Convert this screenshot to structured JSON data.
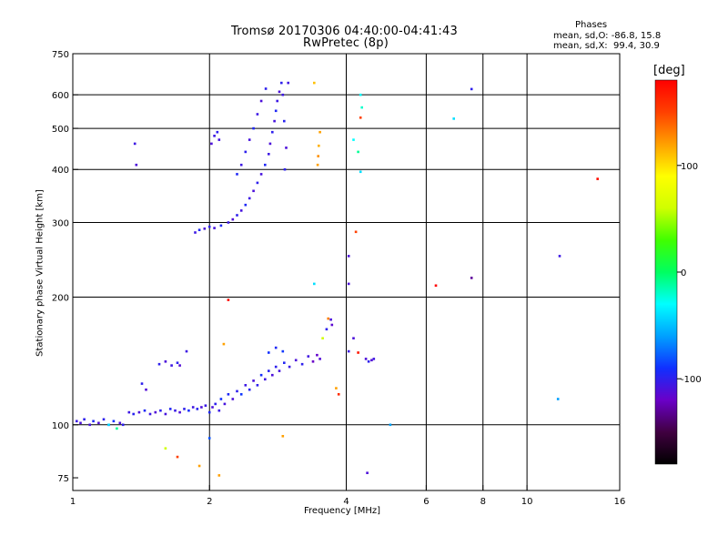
{
  "chart_data": {
    "type": "scatter",
    "title": "Tromsø 20170306 04:40:00-04:41:43",
    "subtitle": "RwPretec (8p)",
    "stats": {
      "heading": "Phases",
      "line1": "mean, sd,O: -86.8, 15.8",
      "line2": "mean, sd,X:  99.4, 30.9"
    },
    "xlabel": "Frequency [MHz]",
    "ylabel": "Stationary phase Virtual Height [km]",
    "x_scale": "log2",
    "y_scale": "log",
    "xlim": [
      1,
      16
    ],
    "ylim": [
      70,
      750
    ],
    "xticks": [
      {
        "value": 1,
        "label": "1"
      },
      {
        "value": 2,
        "label": "2"
      },
      {
        "value": 4,
        "label": "4"
      },
      {
        "value": 6,
        "label": "6"
      },
      {
        "value": 8,
        "label": "8"
      },
      {
        "value": 10,
        "label": "10"
      },
      {
        "value": 16,
        "label": "16"
      }
    ],
    "yticks": [
      {
        "value": 75,
        "label": "75"
      },
      {
        "value": 100,
        "label": "100"
      },
      {
        "value": 200,
        "label": "200"
      },
      {
        "value": 300,
        "label": "300"
      },
      {
        "value": 400,
        "label": "400"
      },
      {
        "value": 500,
        "label": "500"
      },
      {
        "value": 600,
        "label": "600"
      },
      {
        "value": 750,
        "label": "750"
      }
    ],
    "xgrid": [
      2,
      4,
      6,
      8,
      10
    ],
    "ygrid": [
      100,
      200,
      300,
      400,
      500,
      600
    ],
    "grid": true,
    "colorbar": {
      "label": "[deg]",
      "range": [
        -180,
        180
      ],
      "ticks": [
        {
          "value": 100,
          "label": "100"
        },
        {
          "value": 0,
          "label": "0"
        },
        {
          "value": -100,
          "label": "-100"
        }
      ],
      "stops": [
        "#000000",
        "#400040",
        "#6a00c8",
        "#1030ff",
        "#00a0ff",
        "#00ffff",
        "#00ff60",
        "#40ff00",
        "#d0ff00",
        "#ffff00",
        "#ffa000",
        "#ff4000",
        "#ff0000"
      ]
    },
    "series": [
      {
        "points": [
          [
            1.02,
            102,
            -105
          ],
          [
            1.04,
            101,
            -110
          ],
          [
            1.06,
            103,
            -100
          ],
          [
            1.09,
            100,
            -108
          ],
          [
            1.11,
            102,
            -95
          ],
          [
            1.14,
            101,
            -112
          ],
          [
            1.17,
            103,
            -100
          ],
          [
            1.2,
            100,
            -105
          ],
          [
            1.23,
            102,
            -90
          ],
          [
            1.27,
            101,
            -110
          ],
          [
            1.29,
            100,
            -100
          ],
          [
            1.33,
            107,
            -105
          ],
          [
            1.36,
            106,
            -98
          ],
          [
            1.4,
            107,
            -110
          ],
          [
            1.44,
            108,
            -95
          ],
          [
            1.48,
            106,
            -105
          ],
          [
            1.52,
            107,
            -112
          ],
          [
            1.56,
            108,
            -100
          ],
          [
            1.6,
            106,
            -108
          ],
          [
            1.64,
            109,
            -96
          ],
          [
            1.68,
            108,
            -104
          ],
          [
            1.72,
            107,
            -110
          ],
          [
            1.76,
            109,
            -100
          ],
          [
            1.8,
            108,
            -92
          ],
          [
            1.84,
            110,
            -106
          ],
          [
            1.88,
            109,
            -98
          ],
          [
            1.92,
            110,
            -110
          ],
          [
            1.96,
            111,
            -104
          ],
          [
            2.0,
            107,
            -95
          ],
          [
            2.03,
            110,
            -110
          ],
          [
            2.06,
            112,
            -100
          ],
          [
            2.1,
            108,
            -105
          ],
          [
            2.12,
            115,
            -90
          ],
          [
            2.16,
            112,
            -108
          ],
          [
            2.2,
            118,
            -95
          ],
          [
            2.25,
            115,
            -110
          ],
          [
            2.3,
            120,
            -100
          ],
          [
            2.35,
            118,
            -88
          ],
          [
            2.4,
            124,
            -105
          ],
          [
            2.45,
            121,
            -98
          ],
          [
            2.5,
            127,
            -110
          ],
          [
            2.55,
            124,
            -100
          ],
          [
            2.6,
            131,
            -92
          ],
          [
            2.65,
            128,
            -106
          ],
          [
            2.7,
            134,
            -98
          ],
          [
            2.75,
            131,
            -110
          ],
          [
            2.8,
            137,
            -100
          ],
          [
            2.85,
            134,
            -108
          ],
          [
            2.92,
            140,
            -96
          ],
          [
            3.0,
            137,
            -104
          ],
          [
            3.1,
            142,
            -110
          ],
          [
            3.2,
            139,
            -100
          ],
          [
            3.3,
            145,
            -106
          ],
          [
            3.38,
            141,
            -120
          ],
          [
            3.45,
            146,
            -118
          ],
          [
            3.5,
            143,
            -112
          ],
          [
            2.7,
            148,
            -90
          ],
          [
            2.8,
            152,
            -95
          ],
          [
            2.9,
            149,
            -88
          ],
          [
            1.55,
            139,
            -100
          ],
          [
            1.6,
            141,
            -110
          ],
          [
            1.65,
            138,
            -105
          ],
          [
            1.7,
            140,
            -100
          ],
          [
            1.72,
            138,
            -112
          ],
          [
            1.78,
            149,
            -105
          ],
          [
            1.42,
            125,
            -100
          ],
          [
            1.45,
            121,
            -112
          ],
          [
            3.7,
            177,
            -110
          ],
          [
            3.72,
            172,
            -115
          ],
          [
            3.62,
            168,
            -100
          ],
          [
            4.42,
            143,
            -110
          ],
          [
            4.48,
            141,
            -100
          ],
          [
            4.55,
            142,
            -112
          ],
          [
            4.6,
            143,
            -106
          ],
          [
            4.05,
            149,
            -105
          ],
          [
            1.86,
            284,
            -105
          ],
          [
            1.9,
            288,
            -95
          ],
          [
            1.95,
            290,
            -110
          ],
          [
            2.0,
            293,
            -100
          ],
          [
            2.05,
            291,
            -108
          ],
          [
            2.12,
            295,
            -95
          ],
          [
            2.2,
            300,
            -105
          ],
          [
            2.25,
            305,
            -112
          ],
          [
            2.3,
            312,
            -100
          ],
          [
            2.35,
            320,
            -108
          ],
          [
            2.4,
            330,
            -95
          ],
          [
            2.45,
            342,
            -105
          ],
          [
            2.5,
            356,
            -110
          ],
          [
            2.55,
            372,
            -100
          ],
          [
            2.6,
            390,
            -108
          ],
          [
            2.65,
            410,
            -95
          ],
          [
            2.7,
            435,
            -105
          ],
          [
            2.72,
            460,
            -110
          ],
          [
            2.75,
            490,
            -100
          ],
          [
            2.78,
            520,
            -108
          ],
          [
            2.8,
            550,
            -95
          ],
          [
            2.82,
            580,
            -105
          ],
          [
            2.85,
            610,
            -110
          ],
          [
            2.88,
            640,
            -100
          ],
          [
            2.3,
            390,
            -95
          ],
          [
            2.35,
            410,
            -105
          ],
          [
            2.4,
            440,
            -100
          ],
          [
            2.45,
            470,
            -108
          ],
          [
            2.5,
            500,
            -95
          ],
          [
            2.55,
            540,
            -105
          ],
          [
            2.6,
            580,
            -110
          ],
          [
            2.66,
            620,
            -100
          ],
          [
            2.9,
            600,
            -105
          ],
          [
            2.92,
            520,
            -98
          ],
          [
            2.95,
            450,
            -110
          ],
          [
            2.93,
            400,
            -100
          ],
          [
            2.98,
            640,
            -106
          ],
          [
            2.05,
            480,
            -105
          ],
          [
            2.08,
            490,
            -100
          ],
          [
            2.1,
            470,
            -108
          ],
          [
            2.02,
            460,
            -110
          ],
          [
            1.37,
            460,
            -105
          ],
          [
            1.38,
            410,
            -110
          ],
          [
            3.4,
            640,
            110
          ],
          [
            3.5,
            490,
            120
          ],
          [
            3.48,
            455,
            115
          ],
          [
            3.47,
            430,
            125
          ],
          [
            3.46,
            410,
            120
          ],
          [
            3.4,
            215,
            -40
          ],
          [
            3.65,
            178,
            130
          ],
          [
            3.55,
            160,
            60
          ],
          [
            4.3,
            600,
            -30
          ],
          [
            4.33,
            560,
            -20
          ],
          [
            4.3,
            530,
            150
          ],
          [
            4.15,
            470,
            -30
          ],
          [
            4.25,
            440,
            -10
          ],
          [
            4.3,
            395,
            -40
          ],
          [
            4.2,
            285,
            150
          ],
          [
            4.05,
            250,
            -110
          ],
          [
            4.05,
            215,
            -110
          ],
          [
            4.15,
            160,
            -110
          ],
          [
            4.25,
            148,
            170
          ],
          [
            4.45,
            77,
            -110
          ],
          [
            5.0,
            100,
            -60
          ],
          [
            6.9,
            527,
            -40
          ],
          [
            7.55,
            619,
            -100
          ],
          [
            6.3,
            213,
            180
          ],
          [
            7.55,
            222,
            -130
          ],
          [
            11.8,
            250,
            -105
          ],
          [
            11.7,
            115,
            -60
          ],
          [
            14.3,
            380,
            175
          ],
          [
            1.2,
            100,
            -40
          ],
          [
            1.25,
            98,
            -10
          ],
          [
            1.6,
            88,
            60
          ],
          [
            1.7,
            84,
            150
          ],
          [
            1.9,
            80,
            120
          ],
          [
            2.0,
            93,
            -80
          ],
          [
            2.1,
            76,
            120
          ],
          [
            2.15,
            155,
            120
          ],
          [
            2.2,
            197,
            175
          ],
          [
            2.9,
            94,
            120
          ],
          [
            3.85,
            118,
            160
          ],
          [
            3.8,
            122,
            120
          ]
        ]
      }
    ]
  }
}
